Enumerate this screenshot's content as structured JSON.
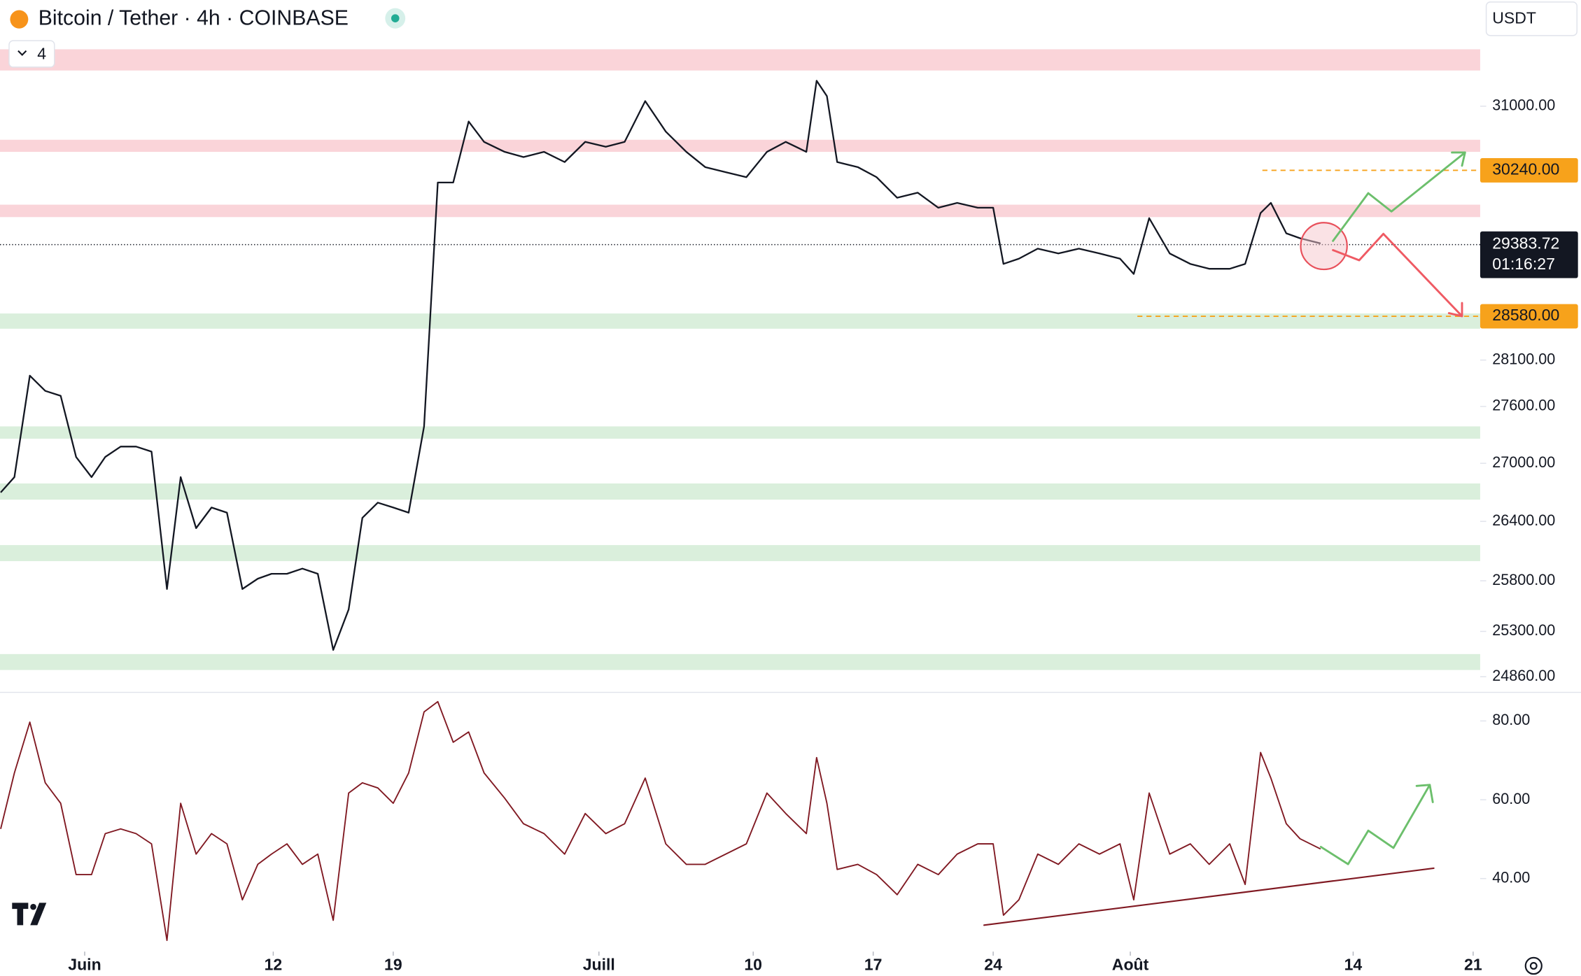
{
  "header": {
    "symbol": "Bitcoin / Tether · 4h · COINBASE",
    "indicators": "4",
    "currency": "USDT"
  },
  "chart_data": [
    {
      "type": "line",
      "log_scale": true,
      "x": [
        -4.9,
        -4.1,
        -3.2,
        -2.3,
        -1.4,
        -0.5,
        0.4,
        1.2,
        2.1,
        3.0,
        3.9,
        4.8,
        5.6,
        6.5,
        7.4,
        8.3,
        9.2,
        10.1,
        10.9,
        11.8,
        12.7,
        13.6,
        14.5,
        15.4,
        16.2,
        17.1,
        18.0,
        18.9,
        19.8,
        20.6,
        21.5,
        22.4,
        23.3,
        24.5,
        25.6,
        26.8,
        28.0,
        29.2,
        30.4,
        31.5,
        32.7,
        33.9,
        35.1,
        36.2,
        37.4,
        38.6,
        39.8,
        40.9,
        42.1,
        42.7,
        43.3,
        43.9,
        45.1,
        46.2,
        47.4,
        48.6,
        49.8,
        50.9,
        52.1,
        53.0,
        53.6,
        54.5,
        55.6,
        56.8,
        58.0,
        59.2,
        60.4,
        61.2,
        62.1,
        63.3,
        64.5,
        65.6,
        66.8,
        67.7,
        68.6,
        69.2,
        70.1,
        70.9,
        72.1
      ],
      "series": [
        {
          "color": "#131722",
          "values": [
            26697,
            26856,
            27931,
            27767,
            27714,
            27066,
            26856,
            27066,
            27175,
            27175,
            27122,
            25718,
            26856,
            26331,
            26542,
            26489,
            25718,
            25821,
            25870,
            25870,
            25922,
            25870,
            25119,
            25516,
            26436,
            26592,
            26542,
            26489,
            27388,
            30098,
            30098,
            30817,
            30575,
            30457,
            30396,
            30457,
            30337,
            30575,
            30517,
            30575,
            31061,
            30697,
            30457,
            30278,
            30218,
            30160,
            30457,
            30575,
            30457,
            31307,
            31121,
            30337,
            30278,
            30160,
            29921,
            29980,
            29806,
            29862,
            29806,
            29806,
            29165,
            29224,
            29338,
            29283,
            29338,
            29283,
            29224,
            29052,
            29686,
            29283,
            29165,
            29110,
            29110,
            29165,
            29745,
            29862,
            29512,
            29456,
            29397
          ]
        }
      ],
      "xlim": [
        -4.94,
        81.41
      ],
      "xticks": [
        {
          "value": 0,
          "label": "Juin"
        },
        {
          "value": 11,
          "label": "12"
        },
        {
          "value": 18,
          "label": "19"
        },
        {
          "value": 30,
          "label": "Juill"
        },
        {
          "value": 39,
          "label": "10"
        },
        {
          "value": 46,
          "label": "17"
        },
        {
          "value": 53,
          "label": "24"
        },
        {
          "value": 61,
          "label": "Août"
        },
        {
          "value": 74,
          "label": "14"
        },
        {
          "value": 81,
          "label": "21"
        }
      ],
      "ylim": [
        24720,
        32300
      ],
      "yticks": [
        {
          "value": 31000,
          "label": "31000.00"
        },
        {
          "value": 28100,
          "label": "28100.00"
        },
        {
          "value": 27600,
          "label": "27600.00"
        },
        {
          "value": 27000,
          "label": "27000.00"
        },
        {
          "value": 26400,
          "label": "26400.00"
        },
        {
          "value": 25800,
          "label": "25800.00"
        },
        {
          "value": 25300,
          "label": "25300.00"
        },
        {
          "value": 24860,
          "label": "24860.00"
        }
      ],
      "zones": [
        {
          "low": 31431,
          "high": 31690,
          "color": "#f9cdd2"
        },
        {
          "low": 30457,
          "high": 30600,
          "color": "#f9cdd2"
        },
        {
          "low": 29698,
          "high": 29841,
          "color": "#f9cdd2"
        },
        {
          "low": 28443,
          "high": 28611,
          "color": "#d4ecd6"
        },
        {
          "low": 27258,
          "high": 27388,
          "color": "#d4ecd6"
        },
        {
          "low": 26623,
          "high": 26790,
          "color": "#d4ecd6"
        },
        {
          "low": 25997,
          "high": 26159,
          "color": "#d4ecd6"
        },
        {
          "low": 24925,
          "high": 25079,
          "color": "#d4ecd6"
        }
      ],
      "levels": [
        {
          "value": 30240,
          "label": "30240.00",
          "color": "#f7a21b"
        },
        {
          "value": 28580,
          "label": "28580.00",
          "color": "#f7a21b"
        }
      ],
      "last_price": {
        "value": 29383.72,
        "label": "29383.72"
      },
      "countdown": "01:16:27"
    },
    {
      "type": "line",
      "x": [
        -4.9,
        -4.1,
        -3.2,
        -2.3,
        -1.4,
        -0.5,
        0.4,
        1.2,
        2.1,
        3.0,
        3.9,
        4.8,
        5.6,
        6.5,
        7.4,
        8.3,
        9.2,
        10.1,
        10.9,
        11.8,
        12.7,
        13.6,
        14.5,
        15.4,
        16.2,
        17.1,
        18.0,
        18.9,
        19.8,
        20.6,
        21.5,
        22.4,
        23.3,
        24.5,
        25.6,
        26.8,
        28.0,
        29.2,
        30.4,
        31.5,
        32.7,
        33.9,
        35.1,
        36.2,
        37.4,
        38.6,
        39.8,
        40.9,
        42.1,
        42.7,
        43.3,
        43.9,
        45.1,
        46.2,
        47.4,
        48.6,
        49.8,
        50.9,
        52.1,
        53.0,
        53.6,
        54.5,
        55.6,
        56.8,
        58.0,
        59.2,
        60.4,
        61.2,
        62.1,
        63.3,
        64.5,
        65.6,
        66.8,
        67.7,
        68.6,
        69.2,
        70.1,
        70.9,
        72.1
      ],
      "series": [
        {
          "color": "#801922",
          "values": [
            52.6,
            66.8,
            79.7,
            64.3,
            59.1,
            41.0,
            41.0,
            51.4,
            52.6,
            51.4,
            48.8,
            24.3,
            59.1,
            46.2,
            51.4,
            48.8,
            34.6,
            43.6,
            46.2,
            48.8,
            43.6,
            46.2,
            29.4,
            61.7,
            64.3,
            63.0,
            59.1,
            66.8,
            82.3,
            84.9,
            74.6,
            77.2,
            66.8,
            60.4,
            53.9,
            51.4,
            46.2,
            56.5,
            51.4,
            53.9,
            65.5,
            48.8,
            43.6,
            43.6,
            46.2,
            48.8,
            61.7,
            56.5,
            51.4,
            70.7,
            59.1,
            42.3,
            43.6,
            41.0,
            35.9,
            43.6,
            41.0,
            46.2,
            48.8,
            48.8,
            30.7,
            34.6,
            46.2,
            43.6,
            48.8,
            46.2,
            48.8,
            34.6,
            61.7,
            46.2,
            48.8,
            43.6,
            48.8,
            38.5,
            72.0,
            65.5,
            53.9,
            50.1,
            47.5
          ]
        }
      ],
      "xlim": [
        -4.94,
        81.41
      ],
      "ylim": [
        23,
        87
      ],
      "yticks": [
        {
          "value": 80,
          "label": "80.00"
        },
        {
          "value": 60,
          "label": "60.00"
        },
        {
          "value": 40,
          "label": "40.00"
        }
      ]
    }
  ]
}
